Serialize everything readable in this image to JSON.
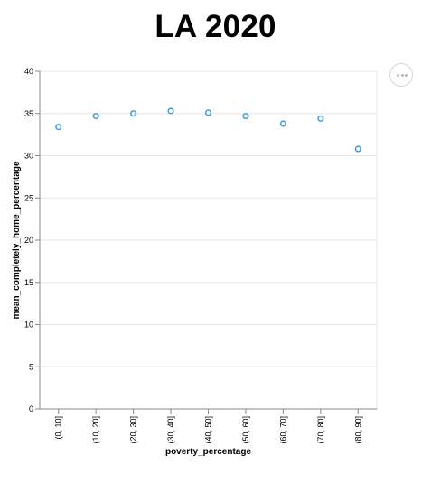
{
  "colors": {
    "point_stroke": "#4c9fd6",
    "grid": "#e6e6e6",
    "axis": "#888888"
  },
  "actions_menu": {
    "icon": "ellipsis-icon"
  },
  "chart_data": {
    "type": "scatter",
    "title": "LA 2020",
    "xlabel": "poverty_percentage",
    "ylabel": "mean_completely_home_percentage",
    "categories": [
      "(0, 10]",
      "(10, 20]",
      "(20, 30]",
      "(30, 40]",
      "(40, 50]",
      "(50, 60]",
      "(60, 70]",
      "(70, 80]",
      "(80, 90]"
    ],
    "values": [
      33.4,
      34.7,
      35.0,
      35.3,
      35.1,
      34.7,
      33.8,
      34.4,
      30.8
    ],
    "ylim": [
      0,
      40
    ],
    "yticks": [
      0,
      5,
      10,
      15,
      20,
      25,
      30,
      35,
      40
    ],
    "grid": true,
    "legend": "none",
    "marker": "hollow-circle"
  }
}
